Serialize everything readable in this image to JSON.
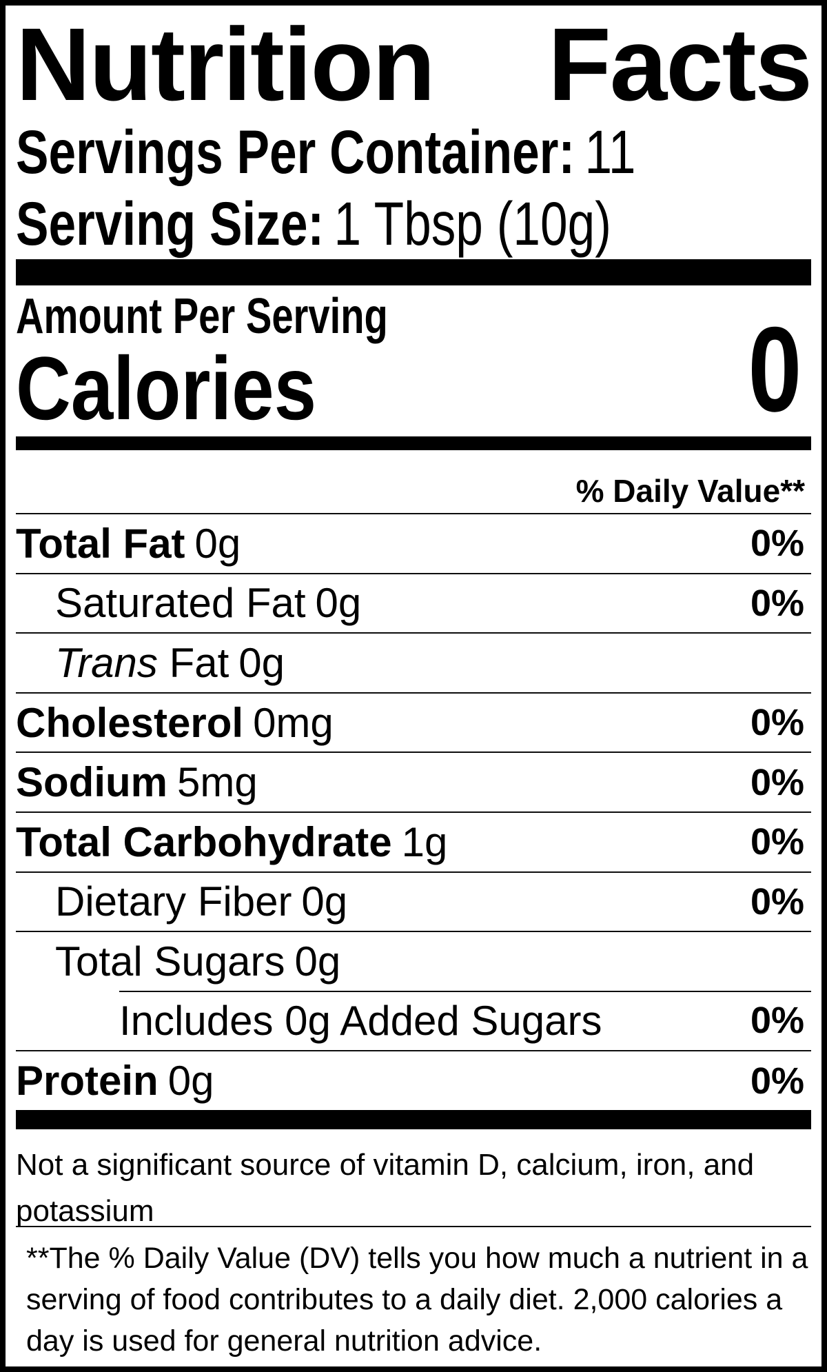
{
  "colors": {
    "text": "#000000",
    "background": "#ffffff",
    "divider_bar": "#000000",
    "hairline": "#0d0d0d"
  },
  "label": {
    "title": "Nutrition Facts",
    "title_words": [
      "Nutrition",
      "Facts"
    ],
    "servings_per_container": {
      "label": "Servings Per Container:",
      "value": "11"
    },
    "serving_size": {
      "label": "Serving Size:",
      "value": "1 Tbsp (10g)"
    },
    "amount_per_serving": "Amount Per Serving",
    "calories_label": "Calories",
    "calories_value": "0",
    "daily_value_header": "% Daily Value**",
    "rows": [
      {
        "name": "Total Fat",
        "name_italic": "",
        "amount": "0g",
        "dv": "0%"
      },
      {
        "name": "Saturated Fat",
        "name_italic": "",
        "amount": "0g",
        "dv": "0%"
      },
      {
        "name": " Fat",
        "name_italic": "Trans",
        "amount": "0g",
        "dv": ""
      },
      {
        "name": "Cholesterol",
        "name_italic": "",
        "amount": "0mg",
        "dv": "0%"
      },
      {
        "name": "Sodium",
        "name_italic": "",
        "amount": "5mg",
        "dv": "0%"
      },
      {
        "name": "Total Carbohydrate",
        "name_italic": "",
        "amount": "1g",
        "dv": "0%"
      },
      {
        "name": "Dietary Fiber",
        "name_italic": "",
        "amount": "0g",
        "dv": "0%"
      },
      {
        "name": "Total Sugars",
        "name_italic": "",
        "amount": "0g",
        "dv": ""
      },
      {
        "name": "Includes 0g Added Sugars",
        "name_italic": "",
        "amount": "",
        "dv": "0%"
      },
      {
        "name": "Protein",
        "name_italic": "",
        "amount": "0g",
        "dv": "0%"
      }
    ],
    "not_significant_lines": [
      "Not a significant source of vitamin D, calcium, iron, and",
      "potassium"
    ],
    "footnote_lines": [
      "**The % Daily Value (DV) tells you how much a nutrient in a",
      "serving of food contributes to a daily diet. 2,000 calories a",
      "day is used for general nutrition advice."
    ]
  }
}
